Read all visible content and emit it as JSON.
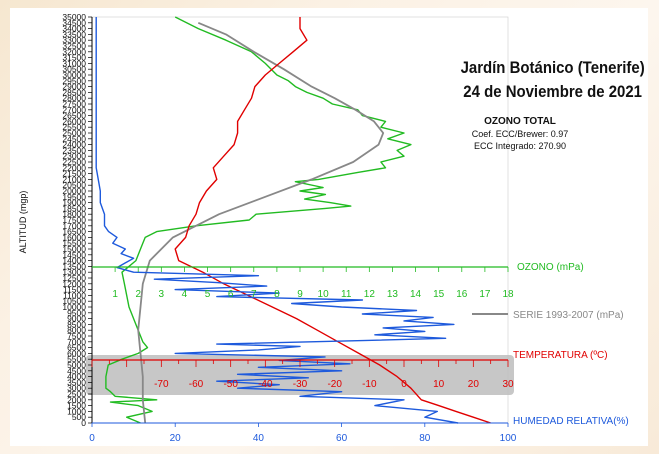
{
  "chart_data": {
    "type": "line",
    "title": "Jardín Botánico (Tenerife)",
    "subtitle": "24 de Noviembre de 2021",
    "info": {
      "heading": "OZONO TOTAL",
      "line1": "Coef. ECC/Brewer: 0.97",
      "line2": "ECC Integrado: 270.90"
    },
    "ylabel": "ALTITUD (mgp)",
    "ylim": [
      0,
      35000
    ],
    "y_ticks": [
      "0",
      "500",
      "1000",
      "1500",
      "2000",
      "2500",
      "3000",
      "3500",
      "4000",
      "4500",
      "5000",
      "5500",
      "6000",
      "6500",
      "7000",
      "7500",
      "8000",
      "8500",
      "9000",
      "9500",
      "10000",
      "10500",
      "11000",
      "11500",
      "12000",
      "12500",
      "13000",
      "13500",
      "14000",
      "14500",
      "15000",
      "15500",
      "16000",
      "16500",
      "17000",
      "17500",
      "18000",
      "18500",
      "19000",
      "19500",
      "20000",
      "20500",
      "21000",
      "21500",
      "22000",
      "22500",
      "23000",
      "23500",
      "24000",
      "24500",
      "25000",
      "25500",
      "26000",
      "26500",
      "27000",
      "27500",
      "28000",
      "28500",
      "29000",
      "29500",
      "30000",
      "30500",
      "31000",
      "31500",
      "32000",
      "32500",
      "33000",
      "33500",
      "34000",
      "34500",
      "35000"
    ],
    "axes": {
      "humidity": {
        "label": "HUMEDAD RELATIVA(%)",
        "range": [
          0,
          100
        ],
        "ticks": [
          "0",
          "20",
          "40",
          "60",
          "80",
          "100"
        ],
        "color": "#1e5adc"
      },
      "ozone": {
        "label": "OZONO (mPa)",
        "range": [
          0,
          18
        ],
        "ticks": [
          "1",
          "2",
          "3",
          "4",
          "5",
          "6",
          "7",
          "8",
          "9",
          "10",
          "11",
          "12",
          "13",
          "14",
          "15",
          "16",
          "17",
          "18"
        ],
        "color": "#22bb22"
      },
      "temperature": {
        "label": "TEMPERATURA (ºC)",
        "range": [
          -90,
          30
        ],
        "ticks": [
          "-70",
          "-60",
          "-50",
          "-40",
          "-30",
          "-20",
          "-10",
          "0",
          "10",
          "20",
          "30"
        ],
        "color": "#e00000"
      }
    },
    "series": [
      {
        "name": "OZONO (mPa)",
        "color": "#22bb22",
        "axis": "ozone",
        "points": [
          [
            2.1,
            0
          ],
          [
            1.5,
            500
          ],
          [
            2.6,
            1000
          ],
          [
            2.0,
            1500
          ],
          [
            0.8,
            1800
          ],
          [
            2.8,
            2000
          ],
          [
            1.0,
            2300
          ],
          [
            0.8,
            2700
          ],
          [
            0.6,
            3000
          ],
          [
            0.6,
            4000
          ],
          [
            0.7,
            5000
          ],
          [
            1.3,
            5500
          ],
          [
            2.0,
            6000
          ],
          [
            2.4,
            6500
          ],
          [
            2.2,
            7000
          ],
          [
            2.0,
            8000
          ],
          [
            1.8,
            9000
          ],
          [
            1.6,
            10000
          ],
          [
            1.5,
            11000
          ],
          [
            1.4,
            12000
          ],
          [
            1.3,
            13000
          ],
          [
            1.9,
            14000
          ],
          [
            2.1,
            15000
          ],
          [
            2.2,
            15500
          ],
          [
            2.3,
            16000
          ],
          [
            2.8,
            16500
          ],
          [
            4.5,
            17000
          ],
          [
            6.8,
            17500
          ],
          [
            7.1,
            18000
          ],
          [
            10.1,
            18500
          ],
          [
            11.2,
            18700
          ],
          [
            10.3,
            19000
          ],
          [
            9.2,
            19300
          ],
          [
            10.1,
            19700
          ],
          [
            9.0,
            20000
          ],
          [
            10.0,
            20300
          ],
          [
            8.8,
            20800
          ],
          [
            9.8,
            21000
          ],
          [
            11.5,
            21600
          ],
          [
            12.7,
            22000
          ],
          [
            12.5,
            22500
          ],
          [
            13.5,
            23000
          ],
          [
            13.2,
            23500
          ],
          [
            13.8,
            24000
          ],
          [
            12.8,
            24500
          ],
          [
            13.5,
            25000
          ],
          [
            12.5,
            25500
          ],
          [
            12.7,
            26000
          ],
          [
            11.7,
            26500
          ],
          [
            11.5,
            27000
          ],
          [
            10.4,
            27500
          ],
          [
            10.0,
            28000
          ],
          [
            9.3,
            28500
          ],
          [
            8.8,
            29000
          ],
          [
            8.5,
            29500
          ],
          [
            8.0,
            30000
          ],
          [
            7.5,
            31000
          ],
          [
            6.9,
            32000
          ],
          [
            5.8,
            33000
          ],
          [
            4.6,
            34000
          ],
          [
            3.6,
            35000
          ]
        ]
      },
      {
        "name": "SERIE 1993-2007 (mPa)",
        "color": "#888888",
        "axis": "ozone",
        "points": [
          [
            2.3,
            0
          ],
          [
            2.2,
            2000
          ],
          [
            2.2,
            4000
          ],
          [
            2.1,
            6000
          ],
          [
            2.0,
            8000
          ],
          [
            2.1,
            10000
          ],
          [
            2.2,
            12000
          ],
          [
            2.5,
            14000
          ],
          [
            3.5,
            16000
          ],
          [
            5.5,
            18000
          ],
          [
            7.5,
            19500
          ],
          [
            9.5,
            21000
          ],
          [
            11.3,
            22500
          ],
          [
            12.4,
            24000
          ],
          [
            12.6,
            25000
          ],
          [
            12.2,
            26000
          ],
          [
            11.4,
            27000
          ],
          [
            10.5,
            28000
          ],
          [
            9.5,
            29000
          ],
          [
            8.3,
            30500
          ],
          [
            7.0,
            32000
          ],
          [
            5.8,
            33500
          ],
          [
            4.6,
            34500
          ]
        ]
      },
      {
        "name": "TEMPERATURA (ºC)",
        "color": "#e00000",
        "axis": "temperature",
        "points": [
          [
            25,
            0
          ],
          [
            20,
            500
          ],
          [
            15,
            1000
          ],
          [
            10,
            1500
          ],
          [
            5,
            2000
          ],
          [
            2,
            3000
          ],
          [
            -2,
            4000
          ],
          [
            -7,
            5000
          ],
          [
            -13,
            6000
          ],
          [
            -19,
            7000
          ],
          [
            -25,
            8000
          ],
          [
            -31,
            9000
          ],
          [
            -38,
            10000
          ],
          [
            -45,
            11000
          ],
          [
            -52,
            12000
          ],
          [
            -58,
            13000
          ],
          [
            -65,
            14000
          ],
          [
            -66,
            15000
          ],
          [
            -63,
            16000
          ],
          [
            -62,
            17000
          ],
          [
            -60,
            18000
          ],
          [
            -59,
            19000
          ],
          [
            -57,
            20000
          ],
          [
            -54,
            21000
          ],
          [
            -55,
            22000
          ],
          [
            -52,
            23000
          ],
          [
            -49,
            24000
          ],
          [
            -48,
            25000
          ],
          [
            -48,
            26000
          ],
          [
            -46,
            27000
          ],
          [
            -44,
            28000
          ],
          [
            -43,
            29000
          ],
          [
            -40,
            30000
          ],
          [
            -36,
            31000
          ],
          [
            -32,
            32000
          ],
          [
            -28,
            33000
          ],
          [
            -30,
            34000
          ],
          [
            -30,
            35000
          ]
        ]
      },
      {
        "name": "HUMEDAD RELATIVA(%)",
        "color": "#1e5adc",
        "axis": "humidity",
        "points": [
          [
            88,
            0
          ],
          [
            80,
            500
          ],
          [
            83,
            1000
          ],
          [
            68,
            1500
          ],
          [
            75,
            2000
          ],
          [
            50,
            2300
          ],
          [
            60,
            2700
          ],
          [
            35,
            3000
          ],
          [
            45,
            3300
          ],
          [
            30,
            3600
          ],
          [
            52,
            3900
          ],
          [
            35,
            4200
          ],
          [
            60,
            4500
          ],
          [
            40,
            4800
          ],
          [
            62,
            5100
          ],
          [
            45,
            5400
          ],
          [
            56,
            5700
          ],
          [
            20,
            6000
          ],
          [
            40,
            6300
          ],
          [
            50,
            6600
          ],
          [
            30,
            6800
          ],
          [
            65,
            7100
          ],
          [
            85,
            7300
          ],
          [
            68,
            7600
          ],
          [
            80,
            7900
          ],
          [
            70,
            8200
          ],
          [
            87,
            8500
          ],
          [
            75,
            8800
          ],
          [
            82,
            9100
          ],
          [
            65,
            9400
          ],
          [
            78,
            9700
          ],
          [
            60,
            10000
          ],
          [
            48,
            10300
          ],
          [
            65,
            10600
          ],
          [
            30,
            10900
          ],
          [
            45,
            11200
          ],
          [
            20,
            11500
          ],
          [
            42,
            11800
          ],
          [
            30,
            12100
          ],
          [
            15,
            12400
          ],
          [
            40,
            12700
          ],
          [
            10,
            13000
          ],
          [
            6,
            13400
          ],
          [
            8,
            13800
          ],
          [
            10,
            14200
          ],
          [
            7,
            14600
          ],
          [
            8,
            15000
          ],
          [
            5,
            15500
          ],
          [
            6,
            16000
          ],
          [
            4,
            16500
          ],
          [
            3,
            17000
          ],
          [
            3,
            18000
          ],
          [
            2,
            19000
          ],
          [
            2,
            20000
          ],
          [
            1,
            22000
          ],
          [
            1,
            25000
          ],
          [
            1,
            30000
          ],
          [
            1,
            35000
          ]
        ]
      }
    ]
  }
}
